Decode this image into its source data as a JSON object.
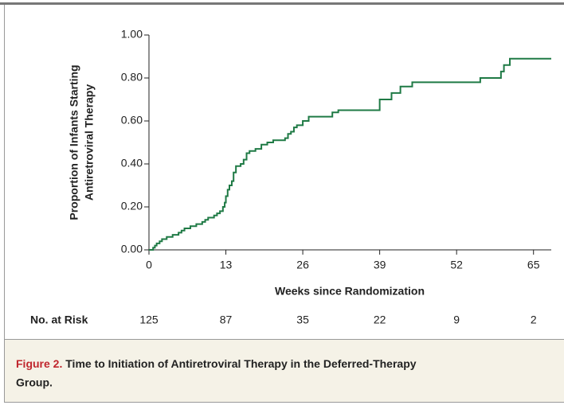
{
  "chart_data": {
    "type": "step",
    "ylabel": [
      "Proportion of Infants Starting",
      "Antiretroviral Therapy"
    ],
    "xlabel": "Weeks since Randomization",
    "color": "#1f7a45",
    "x": [
      0,
      0.7,
      1,
      1.3,
      1.8,
      2.2,
      3,
      4,
      5,
      5.5,
      6,
      7,
      8,
      9,
      9.5,
      10,
      11,
      11.5,
      12,
      12.5,
      12.8,
      13,
      13.3,
      13.6,
      14,
      14.3,
      14.7,
      15.5,
      16,
      16.5,
      17,
      18,
      19,
      20,
      21,
      23,
      23.5,
      24,
      24.5,
      25,
      26,
      27,
      31,
      32,
      39,
      41,
      42.5,
      44.5,
      56,
      59.5,
      60,
      61,
      68
    ],
    "values": [
      0,
      0.01,
      0.02,
      0.03,
      0.04,
      0.05,
      0.06,
      0.07,
      0.08,
      0.09,
      0.1,
      0.11,
      0.12,
      0.13,
      0.14,
      0.15,
      0.16,
      0.17,
      0.18,
      0.2,
      0.22,
      0.25,
      0.28,
      0.3,
      0.32,
      0.36,
      0.39,
      0.4,
      0.42,
      0.45,
      0.46,
      0.47,
      0.49,
      0.5,
      0.51,
      0.52,
      0.54,
      0.55,
      0.57,
      0.58,
      0.6,
      0.62,
      0.64,
      0.65,
      0.7,
      0.73,
      0.76,
      0.78,
      0.8,
      0.83,
      0.86,
      0.89,
      0.89
    ],
    "xlim": [
      0,
      68
    ],
    "ylim": [
      0,
      1
    ],
    "xticks": [
      0,
      13,
      26,
      39,
      52,
      65
    ],
    "yticks": [
      {
        "value": 0,
        "label": "0.00"
      },
      {
        "value": 0.2,
        "label": "0.20"
      },
      {
        "value": 0.4,
        "label": "0.40"
      },
      {
        "value": 0.6,
        "label": "0.60"
      },
      {
        "value": 0.8,
        "label": "0.80"
      },
      {
        "value": 1,
        "label": "1.00"
      }
    ],
    "risk_label": "No. at Risk",
    "risk_values": [
      125,
      87,
      35,
      22,
      9,
      2
    ],
    "caption_label": "Figure 2.",
    "caption": "Time to Initiation of Antiretroviral Therapy in the Deferred-Therapy Group."
  }
}
